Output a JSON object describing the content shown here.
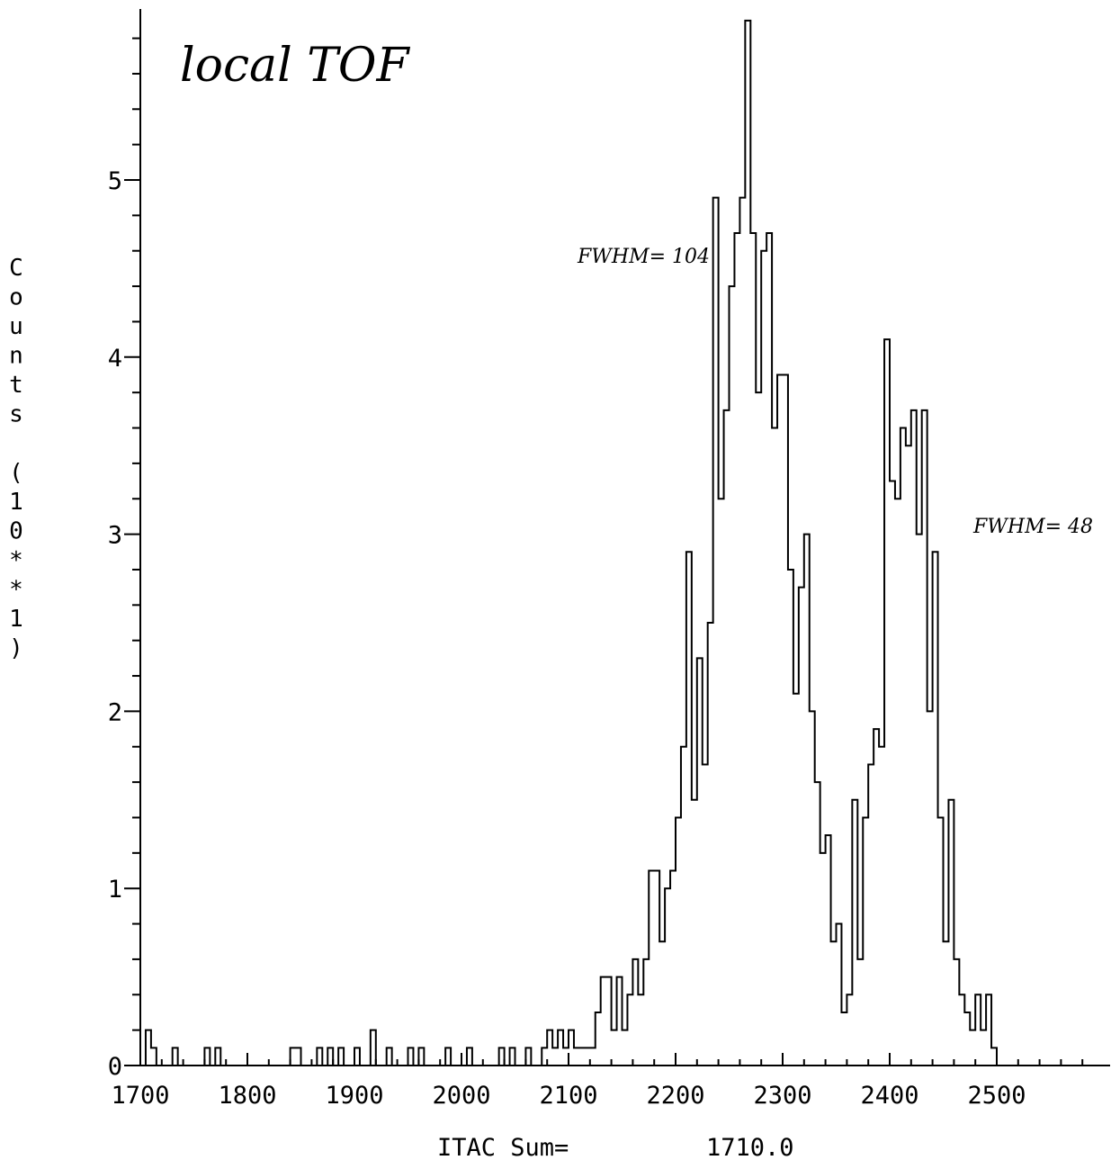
{
  "chart_data": {
    "type": "histogram",
    "xlabel": "",
    "ylabel": "Counts (10**1)",
    "xlim": [
      1700,
      2590
    ],
    "ylim": [
      0,
      6
    ],
    "y_scale_factor": 10,
    "bin_width": 5,
    "xticks": [
      1700,
      1800,
      1900,
      2000,
      2100,
      2200,
      2300,
      2400,
      2500
    ],
    "yticks": [
      0,
      1,
      2,
      3,
      4,
      5
    ],
    "summary_label": "ITAC Sum=",
    "summary_value": "1710.0",
    "annotations": [
      {
        "text": "local TOF",
        "role": "title"
      },
      {
        "text": "FWHM= 104",
        "role": "peak-1-width"
      },
      {
        "text": "FWHM= 48",
        "role": "peak-2-width"
      }
    ],
    "bins": [
      [
        1705,
        0.2
      ],
      [
        1710,
        0.1
      ],
      [
        1730,
        0.1
      ],
      [
        1760,
        0.1
      ],
      [
        1770,
        0.1
      ],
      [
        1840,
        0.1
      ],
      [
        1845,
        0.1
      ],
      [
        1865,
        0.1
      ],
      [
        1875,
        0.1
      ],
      [
        1885,
        0.1
      ],
      [
        1900,
        0.1
      ],
      [
        1915,
        0.2
      ],
      [
        1930,
        0.1
      ],
      [
        1950,
        0.1
      ],
      [
        1960,
        0.1
      ],
      [
        1985,
        0.1
      ],
      [
        2005,
        0.1
      ],
      [
        2035,
        0.1
      ],
      [
        2045,
        0.1
      ],
      [
        2060,
        0.1
      ],
      [
        2075,
        0.1
      ],
      [
        2080,
        0.2
      ],
      [
        2085,
        0.1
      ],
      [
        2090,
        0.2
      ],
      [
        2095,
        0.1
      ],
      [
        2100,
        0.2
      ],
      [
        2105,
        0.1
      ],
      [
        2110,
        0.1
      ],
      [
        2115,
        0.1
      ],
      [
        2120,
        0.1
      ],
      [
        2125,
        0.3
      ],
      [
        2130,
        0.5
      ],
      [
        2135,
        0.5
      ],
      [
        2140,
        0.2
      ],
      [
        2145,
        0.5
      ],
      [
        2150,
        0.2
      ],
      [
        2155,
        0.4
      ],
      [
        2160,
        0.6
      ],
      [
        2165,
        0.4
      ],
      [
        2170,
        0.6
      ],
      [
        2175,
        1.1
      ],
      [
        2180,
        1.1
      ],
      [
        2185,
        0.7
      ],
      [
        2190,
        1.0
      ],
      [
        2195,
        1.1
      ],
      [
        2200,
        1.4
      ],
      [
        2205,
        1.8
      ],
      [
        2210,
        2.9
      ],
      [
        2215,
        1.5
      ],
      [
        2220,
        2.3
      ],
      [
        2225,
        1.7
      ],
      [
        2230,
        2.5
      ],
      [
        2235,
        4.9
      ],
      [
        2240,
        3.2
      ],
      [
        2245,
        3.7
      ],
      [
        2250,
        4.4
      ],
      [
        2255,
        4.7
      ],
      [
        2260,
        4.9
      ],
      [
        2265,
        5.9
      ],
      [
        2270,
        4.7
      ],
      [
        2275,
        3.8
      ],
      [
        2280,
        4.6
      ],
      [
        2285,
        4.7
      ],
      [
        2290,
        3.6
      ],
      [
        2295,
        3.9
      ],
      [
        2300,
        3.9
      ],
      [
        2305,
        2.8
      ],
      [
        2310,
        2.1
      ],
      [
        2315,
        2.7
      ],
      [
        2320,
        3.0
      ],
      [
        2325,
        2.0
      ],
      [
        2330,
        1.6
      ],
      [
        2335,
        1.2
      ],
      [
        2340,
        1.3
      ],
      [
        2345,
        0.7
      ],
      [
        2350,
        0.8
      ],
      [
        2355,
        0.3
      ],
      [
        2360,
        0.4
      ],
      [
        2365,
        1.5
      ],
      [
        2370,
        0.6
      ],
      [
        2375,
        1.4
      ],
      [
        2380,
        1.7
      ],
      [
        2385,
        1.9
      ],
      [
        2390,
        1.8
      ],
      [
        2395,
        4.1
      ],
      [
        2400,
        3.3
      ],
      [
        2405,
        3.2
      ],
      [
        2410,
        3.6
      ],
      [
        2415,
        3.5
      ],
      [
        2420,
        3.7
      ],
      [
        2425,
        3.0
      ],
      [
        2430,
        3.7
      ],
      [
        2435,
        2.0
      ],
      [
        2440,
        2.9
      ],
      [
        2445,
        1.4
      ],
      [
        2450,
        0.7
      ],
      [
        2455,
        1.5
      ],
      [
        2460,
        0.6
      ],
      [
        2465,
        0.4
      ],
      [
        2470,
        0.3
      ],
      [
        2475,
        0.2
      ],
      [
        2480,
        0.4
      ],
      [
        2485,
        0.2
      ],
      [
        2490,
        0.4
      ],
      [
        2495,
        0.1
      ]
    ]
  }
}
